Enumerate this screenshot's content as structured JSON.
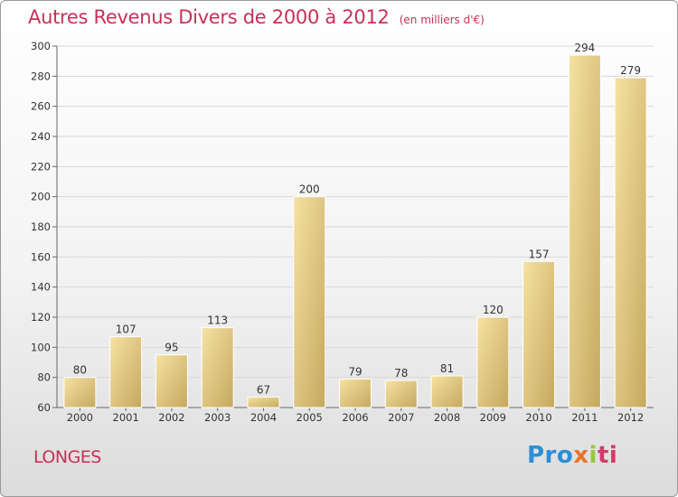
{
  "title": "Autres Revenus Divers de 2000 à 2012",
  "unit": "(en milliers d'€)",
  "place": "LONGES",
  "logo": [
    "Pro",
    "x",
    "i",
    "ti"
  ],
  "colors": {
    "accent": "#c8305a",
    "bar_light": "#f3dc95",
    "bar_dark": "#c5a85e"
  },
  "chart_data": {
    "type": "bar",
    "title": "Autres Revenus Divers de 2000 à 2012",
    "unit": "(en milliers d'€)",
    "categories": [
      "2000",
      "2001",
      "2002",
      "2003",
      "2004",
      "2005",
      "2006",
      "2007",
      "2008",
      "2009",
      "2010",
      "2011",
      "2012"
    ],
    "values": [
      80,
      107,
      95,
      113,
      67,
      200,
      79,
      78,
      81,
      120,
      157,
      294,
      279
    ],
    "ylim": [
      60,
      300
    ],
    "yticks": [
      60,
      80,
      100,
      120,
      140,
      160,
      180,
      200,
      220,
      240,
      260,
      280,
      300
    ],
    "grid": true,
    "legend": "none"
  }
}
